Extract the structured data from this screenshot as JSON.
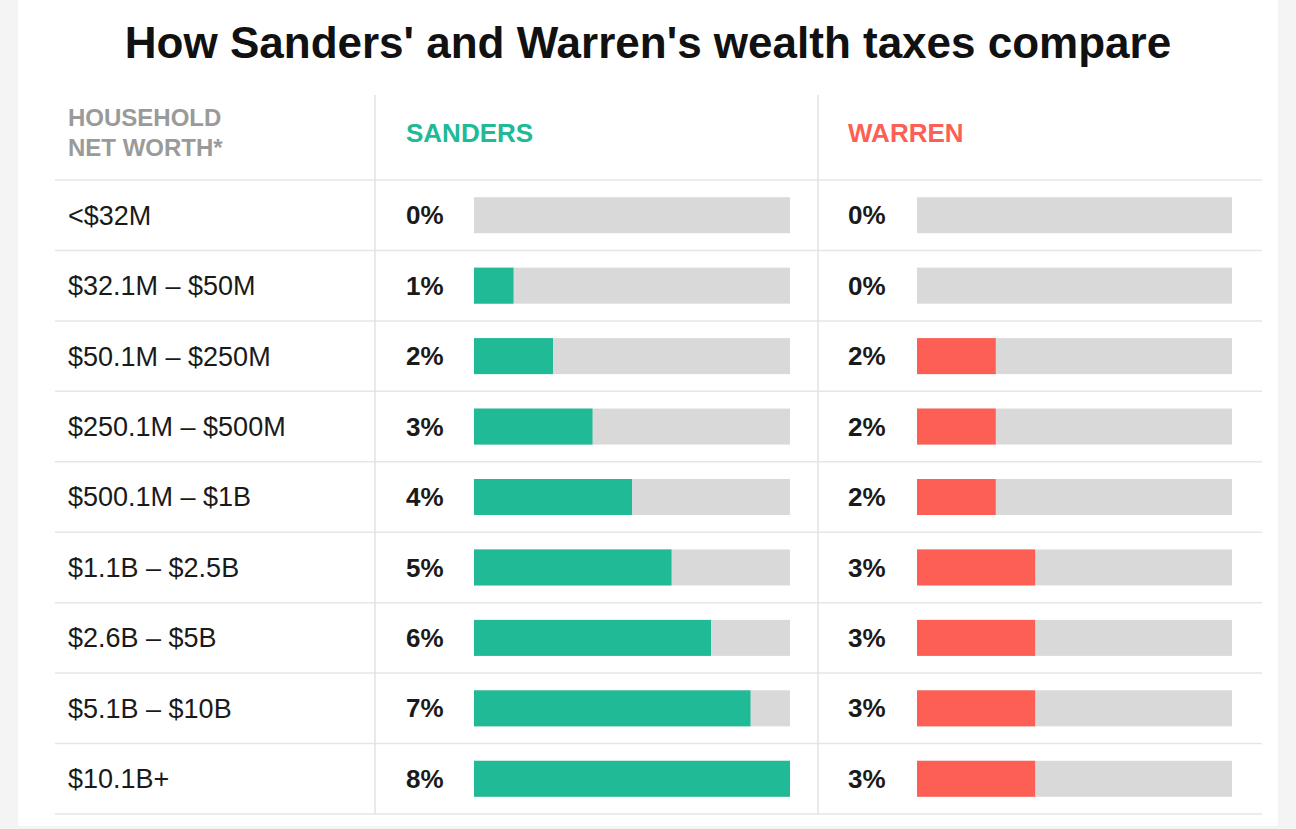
{
  "chart_data": {
    "type": "bar",
    "orientation": "horizontal",
    "title": "How Sanders' and Warren's wealth taxes compare",
    "category_header": "HOUSEHOLD NET WORTH*",
    "categories": [
      "<$32M",
      "$32.1M – $50M",
      "$50.1M – $250M",
      "$250.1M – $500M",
      "$500.1M – $1B",
      "$1.1B – $2.5B",
      "$2.6B – $5B",
      "$5.1B – $10B",
      "$10.1B+"
    ],
    "series": [
      {
        "name": "SANDERS",
        "color": "#20ba97",
        "values": [
          0,
          1,
          2,
          3,
          4,
          5,
          6,
          7,
          8
        ],
        "value_labels": [
          "0%",
          "1%",
          "2%",
          "3%",
          "4%",
          "5%",
          "6%",
          "7%",
          "8%"
        ]
      },
      {
        "name": "WARREN",
        "color": "#fe5f55",
        "values": [
          0,
          0,
          2,
          2,
          2,
          3,
          3,
          3,
          3
        ],
        "value_labels": [
          "0%",
          "0%",
          "2%",
          "2%",
          "2%",
          "3%",
          "3%",
          "3%",
          "3%"
        ]
      }
    ],
    "xlim": [
      0,
      8
    ],
    "tick_labels": false,
    "data_labels": true
  }
}
